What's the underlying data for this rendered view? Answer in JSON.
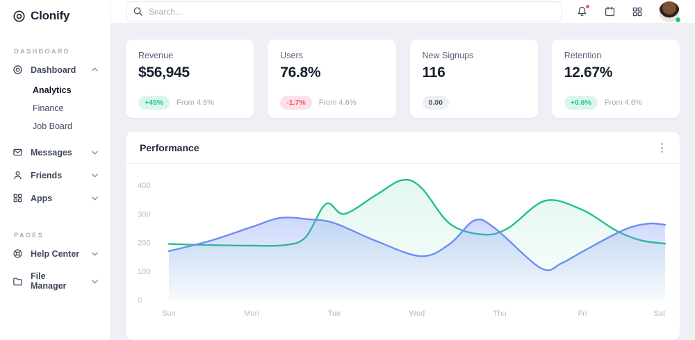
{
  "app_name": "Clonify",
  "colors": {
    "green_accent": "#21c08b",
    "blue_accent": "#6d8df5",
    "positive_badge": "#1ec893",
    "negative_badge": "#f3566b",
    "notification_dot": "#f4516c",
    "online_status": "#27c281"
  },
  "sidebar": {
    "logo": "Clonify",
    "sections": [
      {
        "label": "DASHBOARD"
      },
      {
        "label": "PAGES"
      }
    ],
    "items": {
      "dashboard": {
        "label": "Dashboard"
      },
      "analytics": {
        "label": "Analytics"
      },
      "finance": {
        "label": "Finance"
      },
      "job_board": {
        "label": "Job Board"
      },
      "messages": {
        "label": "Messages"
      },
      "friends": {
        "label": "Friends"
      },
      "apps": {
        "label": "Apps"
      },
      "help_center": {
        "label": "Help Center"
      },
      "file_manager": {
        "label": "File Manager"
      }
    }
  },
  "topbar": {
    "search_placeholder": "Search..."
  },
  "cards": [
    {
      "label": "Revenue",
      "value": "$56,945",
      "badge": "+45%",
      "badge_type": "positive",
      "note": "From 4.6%"
    },
    {
      "label": "Users",
      "value": "76.8%",
      "badge": "-1.7%",
      "badge_type": "negative",
      "note": "From 4.6%"
    },
    {
      "label": "New Signups",
      "value": "116",
      "badge": "0.00",
      "badge_type": "neutral"
    },
    {
      "label": "Retention",
      "value": "12.67%",
      "badge": "+0.6%",
      "badge_type": "positive",
      "note": "From 4.6%"
    }
  ],
  "chart": {
    "title": "Performance"
  },
  "chart_data": {
    "type": "area",
    "title": "Performance",
    "x_labels": [
      "Sun",
      "Mon",
      "Tue",
      "Wed",
      "Thu",
      "Fri",
      "Sat"
    ],
    "y_ticks": [
      0,
      100,
      200,
      300,
      400
    ],
    "ylim": [
      0,
      440
    ],
    "grid": false,
    "legend": "none",
    "series": [
      {
        "name": "green",
        "color": "#21c08b",
        "fill_opacity_top": 0.13,
        "fill_opacity_bottom": 0.02,
        "values_by_day": [
          195,
          190,
          308,
          394,
          240,
          315,
          196
        ],
        "shape_points": [
          [
            0,
            195
          ],
          [
            0.5,
            191
          ],
          [
            1,
            189
          ],
          [
            1.4,
            191
          ],
          [
            1.65,
            218
          ],
          [
            1.9,
            335
          ],
          [
            2.12,
            300
          ],
          [
            2.5,
            365
          ],
          [
            2.82,
            418
          ],
          [
            3.05,
            392
          ],
          [
            3.4,
            265
          ],
          [
            3.8,
            228
          ],
          [
            4.1,
            250
          ],
          [
            4.55,
            346
          ],
          [
            5,
            314
          ],
          [
            5.4,
            243
          ],
          [
            5.7,
            208
          ],
          [
            6,
            196
          ]
        ]
      },
      {
        "name": "blue",
        "color": "#6d8df5",
        "fill_opacity_top": 0.34,
        "fill_opacity_bottom": 0.03,
        "values_by_day": [
          170,
          254,
          268,
          152,
          242,
          168,
          262
        ],
        "shape_points": [
          [
            0,
            170
          ],
          [
            0.5,
            206
          ],
          [
            1,
            254
          ],
          [
            1.35,
            286
          ],
          [
            1.7,
            281
          ],
          [
            2,
            268
          ],
          [
            2.5,
            206
          ],
          [
            3.05,
            152
          ],
          [
            3.4,
            196
          ],
          [
            3.7,
            278
          ],
          [
            3.95,
            248
          ],
          [
            4.5,
            110
          ],
          [
            4.75,
            128
          ],
          [
            5,
            168
          ],
          [
            5.5,
            244
          ],
          [
            5.8,
            266
          ],
          [
            6,
            262
          ]
        ]
      }
    ]
  }
}
